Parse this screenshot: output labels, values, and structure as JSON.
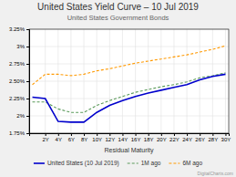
{
  "chart_data": {
    "type": "line",
    "title": "United States Yield Curve – 10 Jul 2019",
    "subtitle": "United States Government Bonds",
    "xlabel": "Residual Maturity",
    "x": [
      0,
      2,
      4,
      6,
      8,
      10,
      12,
      14,
      16,
      18,
      20,
      22,
      24,
      26,
      28,
      30
    ],
    "series": [
      {
        "name": "United States (10 Jul 2019)",
        "color": "#0000cc",
        "line_style": "solid",
        "values": [
          2.27,
          2.25,
          1.92,
          1.91,
          1.91,
          2.05,
          2.15,
          2.22,
          2.28,
          2.33,
          2.37,
          2.41,
          2.45,
          2.52,
          2.57,
          2.6
        ]
      },
      {
        "name": "1M ago",
        "color": "#5a9a5a",
        "line_style": "dashed",
        "values": [
          2.2,
          2.2,
          2.1,
          2.05,
          2.05,
          2.15,
          2.22,
          2.28,
          2.34,
          2.38,
          2.42,
          2.45,
          2.49,
          2.55,
          2.58,
          2.62
        ]
      },
      {
        "name": "6M ago",
        "color": "#ff9900",
        "line_style": "dashed",
        "values": [
          2.45,
          2.6,
          2.6,
          2.58,
          2.6,
          2.65,
          2.68,
          2.72,
          2.76,
          2.79,
          2.82,
          2.85,
          2.88,
          2.92,
          2.96,
          3.01
        ]
      }
    ],
    "xlim": [
      -0.5,
      30.5
    ],
    "xticks": [
      {
        "value": 2,
        "label": "2Y"
      },
      {
        "value": 4,
        "label": "4Y"
      },
      {
        "value": 6,
        "label": "6Y"
      },
      {
        "value": 8,
        "label": "8Y"
      },
      {
        "value": 10,
        "label": "10Y"
      },
      {
        "value": 12,
        "label": "12Y"
      },
      {
        "value": 14,
        "label": "14Y"
      },
      {
        "value": 16,
        "label": "16Y"
      },
      {
        "value": 18,
        "label": "18Y"
      },
      {
        "value": 20,
        "label": "20Y"
      },
      {
        "value": 22,
        "label": "22Y"
      },
      {
        "value": 24,
        "label": "24Y"
      },
      {
        "value": 26,
        "label": "26Y"
      },
      {
        "value": 28,
        "label": "28Y"
      },
      {
        "value": 30,
        "label": "30Y"
      }
    ],
    "ylim": [
      1.75,
      3.25
    ],
    "yticks": [
      {
        "value": 1.75,
        "label": "1.75%"
      },
      {
        "value": 2.0,
        "label": "2%"
      },
      {
        "value": 2.25,
        "label": "2.25%"
      },
      {
        "value": 2.5,
        "label": "2.50%"
      },
      {
        "value": 2.75,
        "label": "2.75%"
      },
      {
        "value": 3.0,
        "label": "3%"
      },
      {
        "value": 3.25,
        "label": "3.25%"
      }
    ],
    "grid": true,
    "legend": "bottom",
    "annotations": [
      "DigitalCharts.com"
    ]
  }
}
